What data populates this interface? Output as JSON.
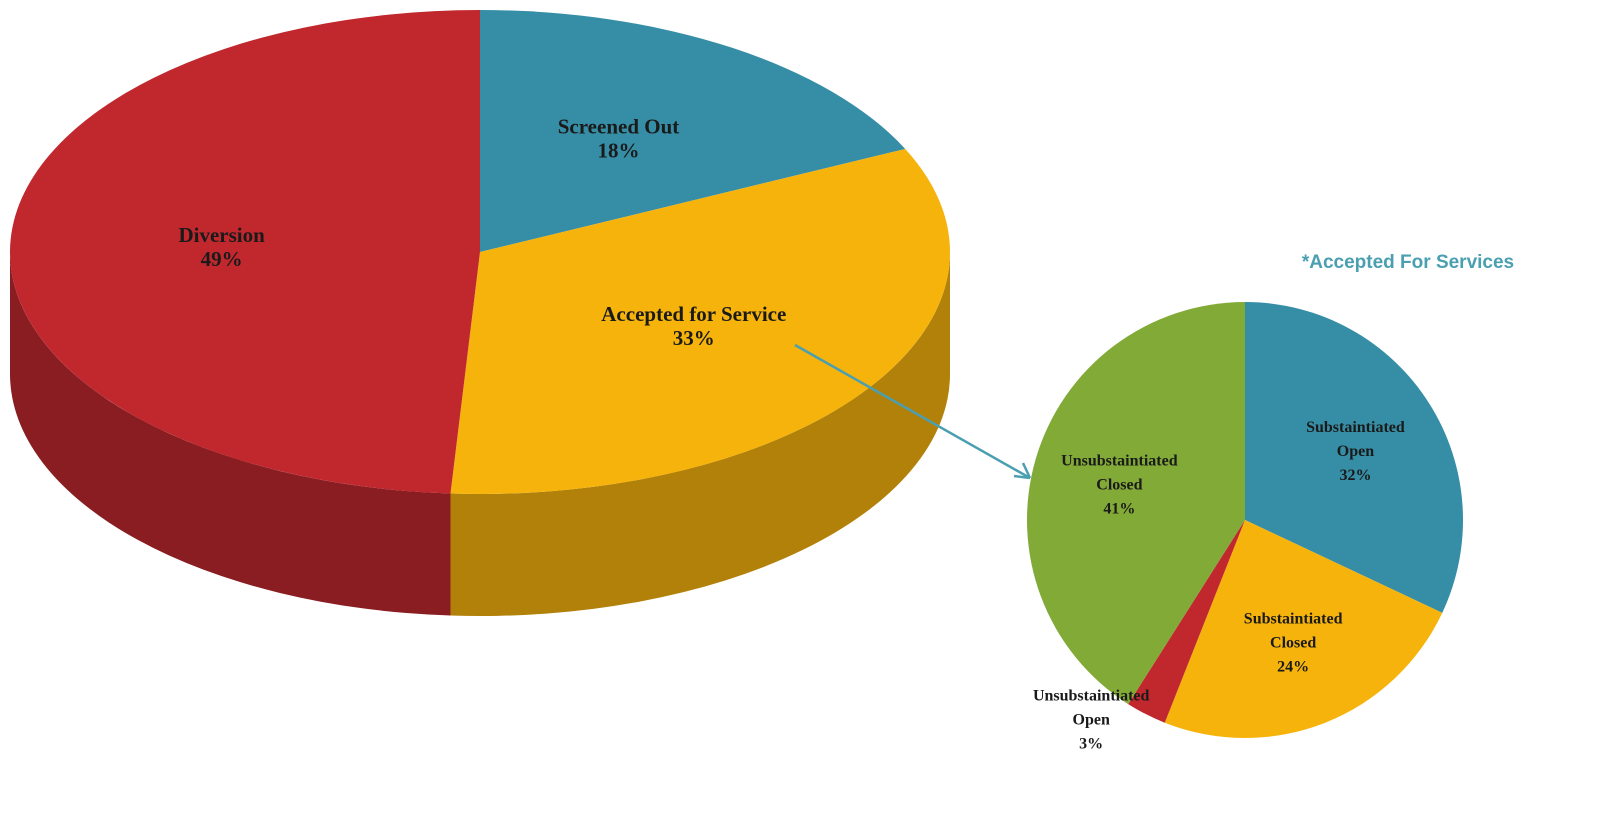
{
  "chart_data": [
    {
      "type": "pie3d",
      "categories": [
        "Screened Out",
        "Accepted for Service",
        "Diversion"
      ],
      "values": [
        18,
        33,
        49
      ],
      "value_labels": [
        "18%",
        "33%",
        "49%"
      ],
      "colors": [
        "#368ea6",
        "#f6b30c",
        "#c0282e"
      ]
    },
    {
      "type": "pie",
      "title": "*Accepted For Services",
      "categories": [
        "Substaintiated\nOpen",
        "Substaintiated\nClosed",
        "Unsubstaintiated\nOpen",
        "Unsubstaintiated\nClosed"
      ],
      "values": [
        32,
        24,
        3,
        41
      ],
      "value_labels": [
        "32%",
        "24%",
        "3%",
        "41%"
      ],
      "colors": [
        "#368ea6",
        "#f6b30c",
        "#c0282e",
        "#82aa36"
      ]
    }
  ]
}
